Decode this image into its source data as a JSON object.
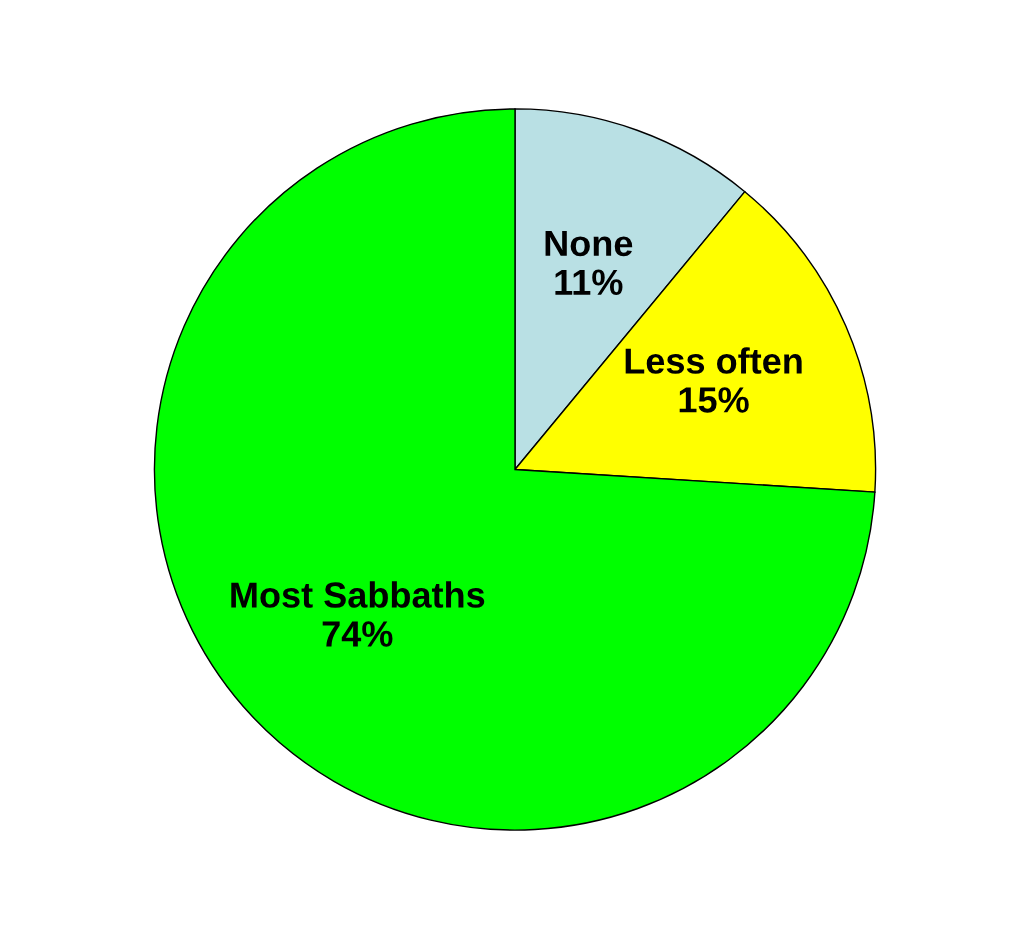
{
  "chart_data": {
    "type": "pie",
    "categories": [
      "None",
      "Less often",
      "Most Sabbaths"
    ],
    "values": [
      11,
      15,
      74
    ],
    "value_labels": [
      "11%",
      "15%",
      "74%"
    ],
    "colors": [
      "#b9e0e4",
      "#ffff00",
      "#00ff00"
    ]
  }
}
